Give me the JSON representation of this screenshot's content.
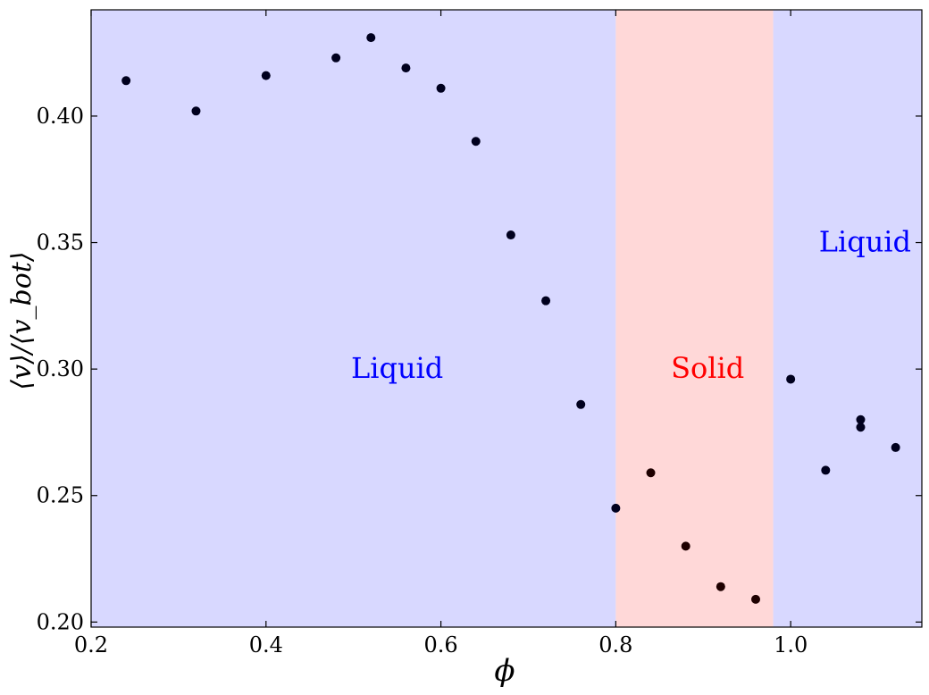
{
  "chart_data": {
    "type": "scatter",
    "xlabel": "ϕ",
    "ylabel": "⟨v⟩/⟨v_bot⟩",
    "xlim": [
      0.2,
      1.15
    ],
    "ylim": [
      0.198,
      0.442
    ],
    "grid": false,
    "x_ticks": [
      0.2,
      0.4,
      0.6,
      0.8,
      1.0
    ],
    "x_tick_labels": [
      "0.2",
      "0.4",
      "0.6",
      "0.8",
      "1.0"
    ],
    "y_ticks": [
      0.2,
      0.25,
      0.3,
      0.35,
      0.4
    ],
    "y_tick_labels": [
      "0.20",
      "0.25",
      "0.30",
      "0.35",
      "0.40"
    ],
    "regions": [
      {
        "name": "liquid-left",
        "x_start": 0.2,
        "x_end": 0.8,
        "color": "#d8d8ff"
      },
      {
        "name": "solid",
        "x_start": 0.8,
        "x_end": 0.98,
        "color": "#ffd8d8"
      },
      {
        "name": "liquid-right",
        "x_start": 0.98,
        "x_end": 1.15,
        "color": "#d8d8ff"
      }
    ],
    "annotations": [
      {
        "text": "Liquid",
        "x": 0.55,
        "y": 0.3,
        "color": "#0000ff"
      },
      {
        "text": "Solid",
        "x": 0.905,
        "y": 0.3,
        "color": "#ff0000"
      },
      {
        "text": "Liquid",
        "x": 1.085,
        "y": 0.35,
        "color": "#0000ff"
      }
    ],
    "series": [
      {
        "color_liquid": "#00001e",
        "color_solid": "#1e0000",
        "points": [
          {
            "x": 0.24,
            "y": 0.414
          },
          {
            "x": 0.32,
            "y": 0.402
          },
          {
            "x": 0.4,
            "y": 0.416
          },
          {
            "x": 0.48,
            "y": 0.423
          },
          {
            "x": 0.52,
            "y": 0.431
          },
          {
            "x": 0.56,
            "y": 0.419
          },
          {
            "x": 0.6,
            "y": 0.411
          },
          {
            "x": 0.64,
            "y": 0.39
          },
          {
            "x": 0.68,
            "y": 0.353
          },
          {
            "x": 0.72,
            "y": 0.327
          },
          {
            "x": 0.76,
            "y": 0.286
          },
          {
            "x": 0.8,
            "y": 0.245
          },
          {
            "x": 0.84,
            "y": 0.259
          },
          {
            "x": 0.88,
            "y": 0.23
          },
          {
            "x": 0.92,
            "y": 0.214
          },
          {
            "x": 0.96,
            "y": 0.209
          },
          {
            "x": 1.0,
            "y": 0.296
          },
          {
            "x": 1.04,
            "y": 0.26
          },
          {
            "x": 1.08,
            "y": 0.28
          },
          {
            "x": 1.08,
            "y": 0.277
          },
          {
            "x": 1.12,
            "y": 0.269
          }
        ]
      }
    ]
  }
}
